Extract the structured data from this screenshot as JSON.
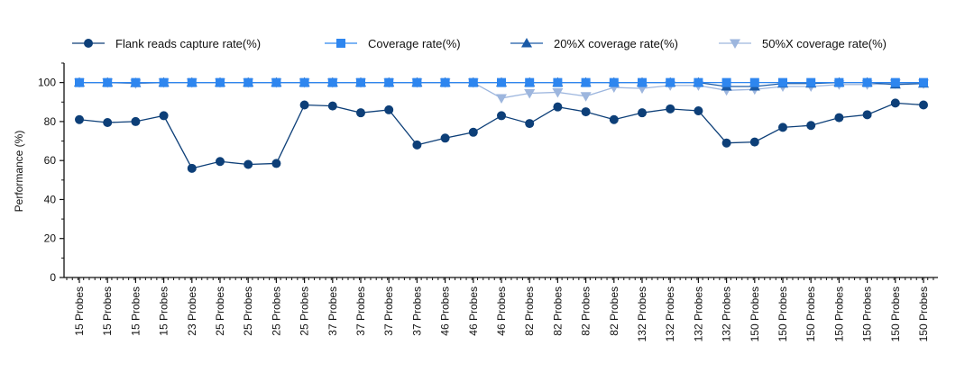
{
  "chart_data": {
    "type": "line",
    "ylabel": "Performance (%)",
    "xlabel": "",
    "ylim": [
      0,
      110
    ],
    "yticks": [
      0,
      20,
      40,
      60,
      80,
      100
    ],
    "grid": false,
    "legend_position": "top",
    "categories": [
      "15 Probes",
      "15 Probes",
      "15 Probes",
      "15 Probes",
      "23 Probes",
      "25 Probes",
      "25 Probes",
      "25 Probes",
      "25 Probes",
      "37 Probes",
      "37 Probes",
      "37 Probes",
      "37 Probes",
      "46 Probes",
      "46 Probes",
      "46 Probes",
      "82 Probes",
      "82 Probes",
      "82 Probes",
      "82 Probes",
      "132 Probes",
      "132 Probes",
      "132 Probes",
      "132 Probes",
      "150 Probes",
      "150 Probes",
      "150 Probes",
      "150 Probes",
      "150 Probes",
      "150 Probes",
      "150 Probes"
    ],
    "series": [
      {
        "name": "Flank reads capture rate(%)",
        "color": "#0d3f78",
        "marker": "circle",
        "values": [
          81,
          79.5,
          80,
          83,
          56,
          59.5,
          58,
          58.5,
          88.5,
          88,
          84.5,
          86,
          68,
          71.5,
          74.5,
          83,
          79,
          87.5,
          85,
          81,
          84.5,
          86.5,
          85.5,
          69,
          69.5,
          77,
          78,
          82,
          83.5,
          89.5,
          88.5
        ]
      },
      {
        "name": "Coverage rate(%)",
        "color": "#2e86ef",
        "marker": "square",
        "values": [
          100,
          100,
          100,
          100,
          100,
          100,
          100,
          100,
          100,
          100,
          100,
          100,
          100,
          100,
          100,
          100,
          100,
          100,
          100,
          100,
          100,
          100,
          100,
          100,
          100,
          100,
          100,
          100,
          100,
          100,
          100
        ]
      },
      {
        "name": "20%X coverage rate(%)",
        "color": "#1a5aa6",
        "marker": "triangle-up",
        "values": [
          100,
          100,
          99.8,
          100,
          100,
          100,
          100,
          100,
          100,
          100,
          100,
          100,
          100,
          100,
          100,
          100,
          100,
          100,
          100,
          100,
          100,
          100,
          100,
          98,
          98,
          99.5,
          99.5,
          100,
          100,
          99,
          99.5
        ]
      },
      {
        "name": "50%X coverage rate(%)",
        "color": "#9db6de",
        "marker": "triangle-down",
        "values": [
          100,
          100,
          99.5,
          100,
          100,
          100,
          100,
          100,
          100,
          100,
          100,
          100,
          100,
          100,
          100,
          92,
          94.5,
          95,
          93,
          97.5,
          97,
          98.5,
          98.5,
          96,
          96.5,
          98,
          98,
          99,
          99,
          99.5,
          99.5
        ]
      }
    ]
  }
}
